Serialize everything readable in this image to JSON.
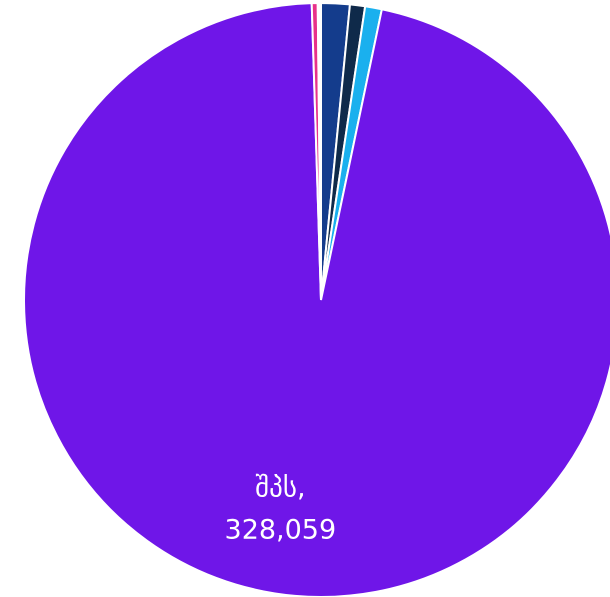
{
  "chart_data": {
    "type": "pie",
    "categories": [
      null,
      null,
      null,
      "შპს,",
      null,
      null
    ],
    "values": [
      5300,
      2800,
      3100,
      328059,
      1100,
      600
    ],
    "value_labels": [
      null,
      null,
      null,
      "328,059",
      null,
      null
    ],
    "colors": [
      "#143c8c",
      "#0f2a4a",
      "#1ab0ee",
      "#6f16e8",
      "#e8318a",
      "#ffffff"
    ]
  }
}
